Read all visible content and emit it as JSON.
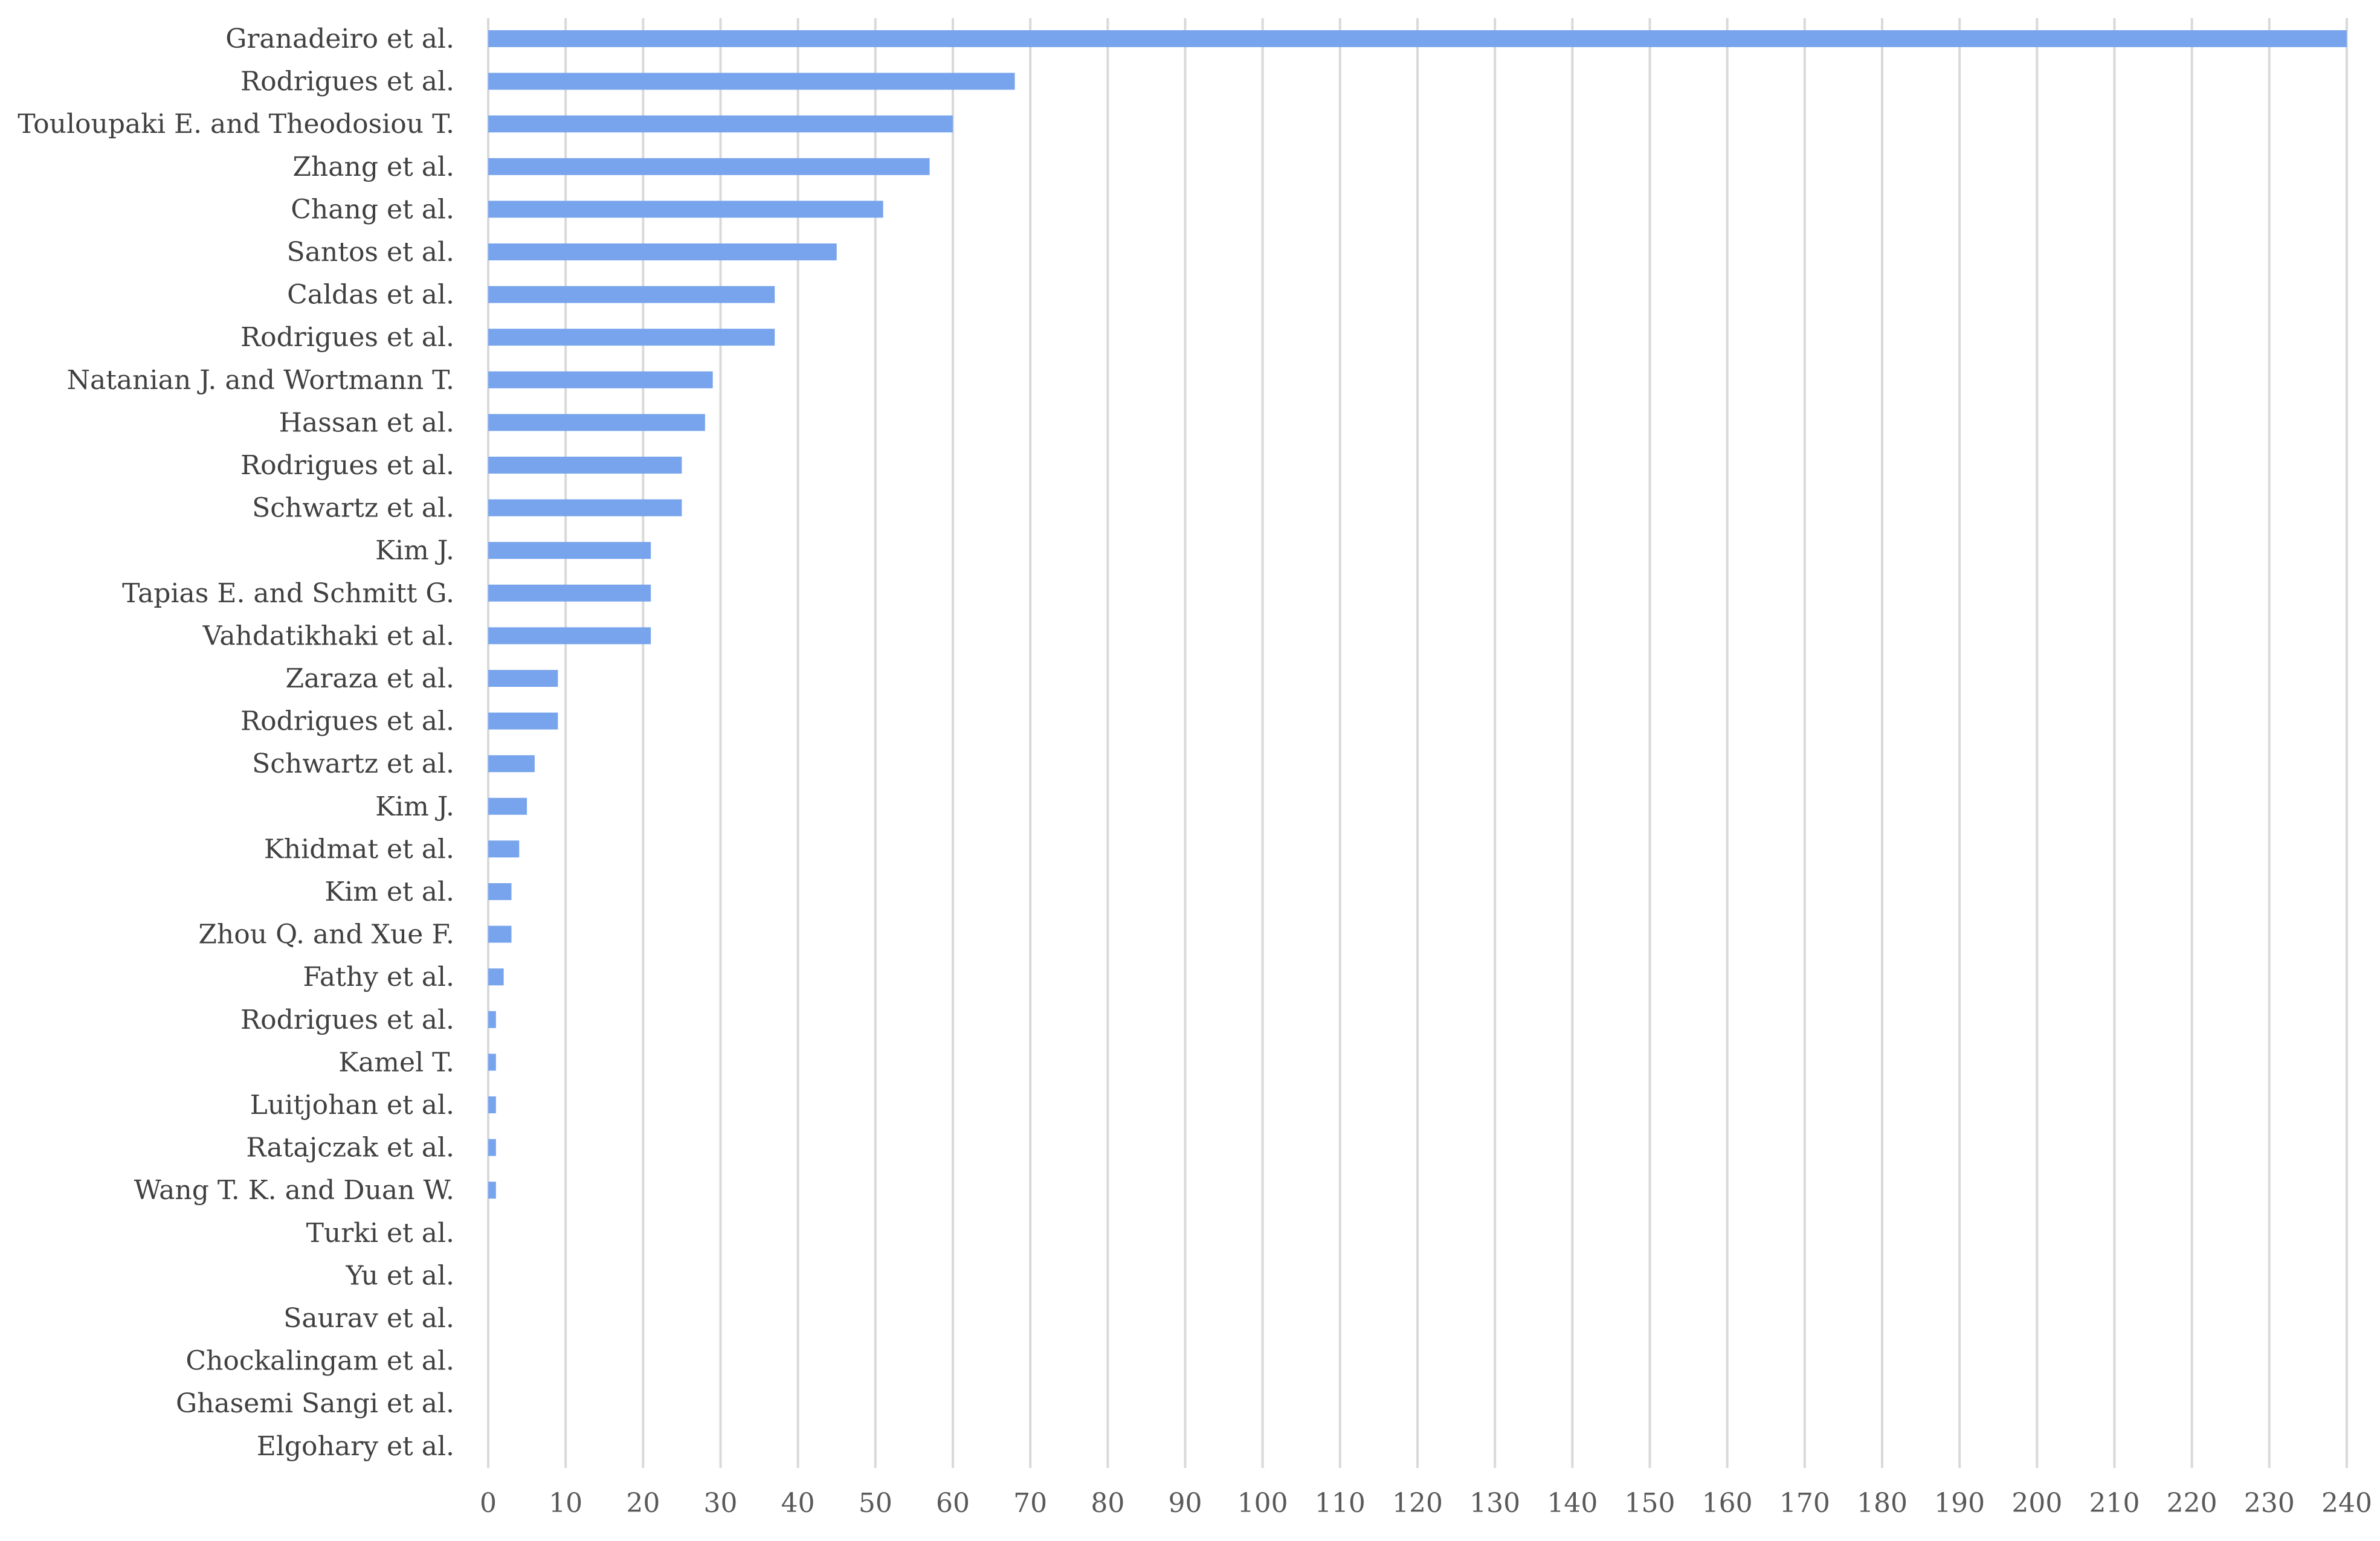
{
  "chart_data": {
    "type": "bar",
    "orientation": "horizontal",
    "title": "",
    "xlabel": "",
    "ylabel": "",
    "xlim": [
      0,
      240
    ],
    "x_ticks": [
      0,
      10,
      20,
      30,
      40,
      50,
      60,
      70,
      80,
      90,
      100,
      110,
      120,
      130,
      140,
      150,
      160,
      170,
      180,
      190,
      200,
      210,
      220,
      230,
      240
    ],
    "grid": "vertical",
    "legend": "none",
    "bar_color": "#77A4EC",
    "categories": [
      "Granadeiro et al.",
      "Rodrigues et al.",
      "Touloupaki E. and Theodosiou T.",
      "Zhang et al.",
      "Chang et al.",
      "Santos et al.",
      "Caldas et al.",
      "Rodrigues et al.",
      "Natanian J. and Wortmann T.",
      "Hassan et al.",
      "Rodrigues et al.",
      "Schwartz et al.",
      "Kim J.",
      "Tapias E. and Schmitt G.",
      "Vahdatikhaki et al.",
      "Zaraza et al.",
      "Rodrigues et al.",
      "Schwartz et al.",
      "Kim J.",
      "Khidmat et al.",
      "Kim et al.",
      "Zhou Q. and Xue F.",
      "Fathy et al.",
      "Rodrigues et al.",
      "Kamel T.",
      "Luitjohan et al.",
      "Ratajczak et al.",
      "Wang T. K. and Duan W.",
      "Turki et al.",
      "Yu et al.",
      "Saurav et al.",
      "Chockalingam et al.",
      "Ghasemi Sangi et al.",
      "Elgohary et al."
    ],
    "values": [
      240,
      68,
      60,
      57,
      51,
      45,
      37,
      37,
      29,
      28,
      25,
      25,
      21,
      21,
      21,
      9,
      9,
      6,
      5,
      4,
      3,
      3,
      2,
      1,
      1,
      1,
      1,
      1,
      0,
      0,
      0,
      0,
      0,
      0
    ]
  }
}
